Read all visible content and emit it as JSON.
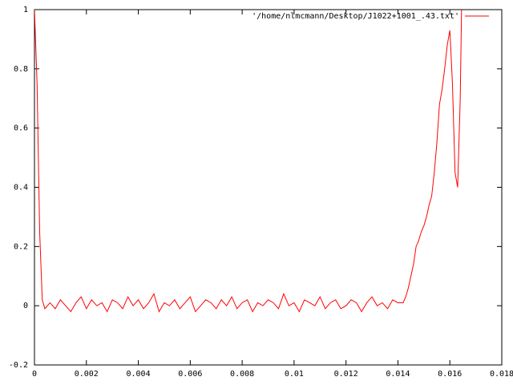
{
  "chart_data": {
    "type": "line",
    "legend_position": "top-right",
    "xlim": [
      0,
      0.018
    ],
    "ylim": [
      -0.2,
      1
    ],
    "xticks": [
      0,
      0.002,
      0.004,
      0.006,
      0.008,
      0.01,
      0.012,
      0.014,
      0.016,
      0.018
    ],
    "yticks": [
      -0.2,
      0,
      0.2,
      0.4,
      0.6,
      0.8,
      1
    ],
    "series": [
      {
        "name": "'/home/nlmcmann/Desktop/J1022+1001_.43.txt'",
        "color": "#ff0000",
        "x": [
          0,
          0.0001,
          0.0002,
          0.0003,
          0.0004,
          0.0006,
          0.0008,
          0.001,
          0.0012,
          0.0014,
          0.0016,
          0.0018,
          0.002,
          0.0022,
          0.0024,
          0.0026,
          0.0028,
          0.003,
          0.0032,
          0.0034,
          0.0036,
          0.0038,
          0.004,
          0.0042,
          0.0044,
          0.0046,
          0.0048,
          0.005,
          0.0052,
          0.0054,
          0.0056,
          0.0058,
          0.006,
          0.0062,
          0.0064,
          0.0066,
          0.0068,
          0.007,
          0.0072,
          0.0074,
          0.0076,
          0.0078,
          0.008,
          0.0082,
          0.0084,
          0.0086,
          0.0088,
          0.009,
          0.0092,
          0.0094,
          0.0096,
          0.0098,
          0.01,
          0.0102,
          0.0104,
          0.0106,
          0.0108,
          0.011,
          0.0112,
          0.0114,
          0.0116,
          0.0118,
          0.012,
          0.0122,
          0.0124,
          0.0126,
          0.0128,
          0.013,
          0.0132,
          0.0134,
          0.0136,
          0.0138,
          0.014,
          0.0142,
          0.0143,
          0.0144,
          0.0145,
          0.0146,
          0.0147,
          0.0148,
          0.0149,
          0.015,
          0.0151,
          0.0152,
          0.0153,
          0.0154,
          0.0155,
          0.0156,
          0.0157,
          0.0158,
          0.0159,
          0.016,
          0.0161,
          0.0162,
          0.0163,
          0.0164,
          0.01645
        ],
        "values": [
          1,
          0.75,
          0.25,
          0.02,
          -0.01,
          0.01,
          -0.01,
          0.02,
          0,
          -0.02,
          0.01,
          0.03,
          -0.01,
          0.02,
          0,
          0.01,
          -0.02,
          0.02,
          0.01,
          -0.01,
          0.03,
          0,
          0.02,
          -0.01,
          0.01,
          0.04,
          -0.02,
          0.01,
          0,
          0.02,
          -0.01,
          0.01,
          0.03,
          -0.02,
          0,
          0.02,
          0.01,
          -0.01,
          0.02,
          0,
          0.03,
          -0.01,
          0.01,
          0.02,
          -0.02,
          0.01,
          0,
          0.02,
          0.01,
          -0.01,
          0.04,
          0,
          0.01,
          -0.02,
          0.02,
          0.01,
          0,
          0.03,
          -0.01,
          0.01,
          0.02,
          -0.01,
          0,
          0.02,
          0.01,
          -0.02,
          0.01,
          0.03,
          0,
          0.01,
          -0.01,
          0.02,
          0.01,
          0.01,
          0.03,
          0.06,
          0.1,
          0.14,
          0.2,
          0.22,
          0.25,
          0.27,
          0.3,
          0.34,
          0.37,
          0.45,
          0.55,
          0.68,
          0.73,
          0.8,
          0.88,
          0.93,
          0.75,
          0.45,
          0.4,
          0.7,
          1
        ]
      }
    ]
  }
}
